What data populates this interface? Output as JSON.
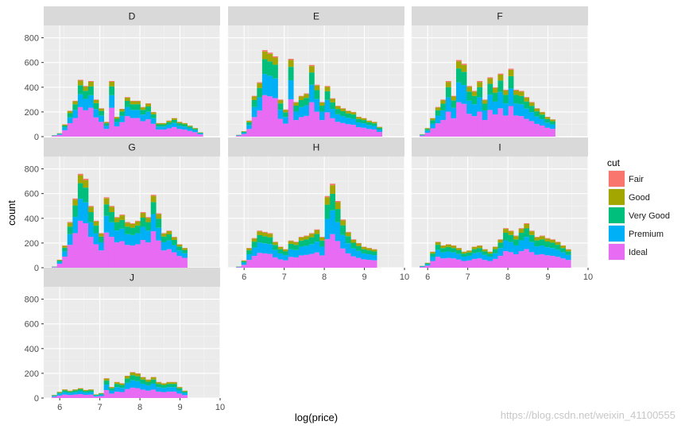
{
  "chart_data": {
    "type": "bar",
    "subtype": "stacked histogram, faceted by color",
    "xlabel": "log(price)",
    "ylabel": "count",
    "xlim": [
      5.6,
      10.0
    ],
    "ylim": [
      0,
      900
    ],
    "x_ticks": [
      "6",
      "7",
      "8",
      "9",
      "10"
    ],
    "y_ticks": [
      "0",
      "200",
      "400",
      "600",
      "800"
    ],
    "bin_start": 5.8,
    "bin_width": 0.13,
    "grid": true,
    "legend": {
      "title": "cut",
      "placement": "right",
      "entries": [
        "Fair",
        "Good",
        "Very Good",
        "Premium",
        "Ideal"
      ],
      "colors": [
        "#F8766D",
        "#A3A500",
        "#00BF7D",
        "#00B0F6",
        "#E76BF3"
      ]
    },
    "facets": [
      {
        "label": "D",
        "totals": [
          12,
          28,
          100,
          210,
          290,
          460,
          410,
          450,
          300,
          230,
          120,
          450,
          160,
          225,
          320,
          290,
          290,
          240,
          270,
          200,
          110,
          110,
          130,
          150,
          120,
          110,
          90,
          70,
          35
        ],
        "ideal_share": 0.52
      },
      {
        "label": "E",
        "totals": [
          15,
          45,
          130,
          330,
          440,
          700,
          680,
          650,
          300,
          220,
          630,
          280,
          330,
          350,
          580,
          420,
          280,
          410,
          310,
          250,
          230,
          210,
          200,
          160,
          150,
          130,
          120,
          80
        ],
        "ideal_share": 0.48
      },
      {
        "label": "F",
        "totals": [
          20,
          70,
          150,
          240,
          300,
          450,
          330,
          620,
          590,
          410,
          370,
          450,
          300,
          480,
          400,
          510,
          380,
          550,
          380,
          370,
          320,
          280,
          230,
          200,
          160,
          140
        ],
        "ideal_share": 0.45
      },
      {
        "label": "G",
        "totals": [
          10,
          65,
          180,
          370,
          560,
          760,
          720,
          500,
          380,
          280,
          570,
          500,
          410,
          430,
          370,
          360,
          380,
          450,
          410,
          590,
          440,
          280,
          300,
          250,
          190,
          160
        ],
        "ideal_share": 0.5
      },
      {
        "label": "H",
        "totals": [
          10,
          60,
          160,
          240,
          300,
          290,
          280,
          210,
          170,
          150,
          220,
          210,
          250,
          260,
          280,
          310,
          250,
          580,
          680,
          540,
          390,
          290,
          230,
          200,
          170,
          160,
          150
        ],
        "ideal_share": 0.4
      },
      {
        "label": "I",
        "totals": [
          15,
          40,
          130,
          210,
          180,
          190,
          180,
          160,
          130,
          140,
          170,
          180,
          150,
          130,
          170,
          230,
          320,
          300,
          260,
          320,
          360,
          300,
          250,
          260,
          240,
          230,
          210,
          180,
          150
        ],
        "ideal_share": 0.42
      },
      {
        "label": "J",
        "totals": [
          25,
          50,
          70,
          60,
          70,
          80,
          65,
          70,
          30,
          40,
          160,
          90,
          130,
          120,
          180,
          210,
          200,
          170,
          150,
          170,
          130,
          120,
          130,
          130,
          90,
          60
        ],
        "ideal_share": 0.4
      }
    ],
    "watermark": "https://blog.csdn.net/weixin_41100555"
  }
}
